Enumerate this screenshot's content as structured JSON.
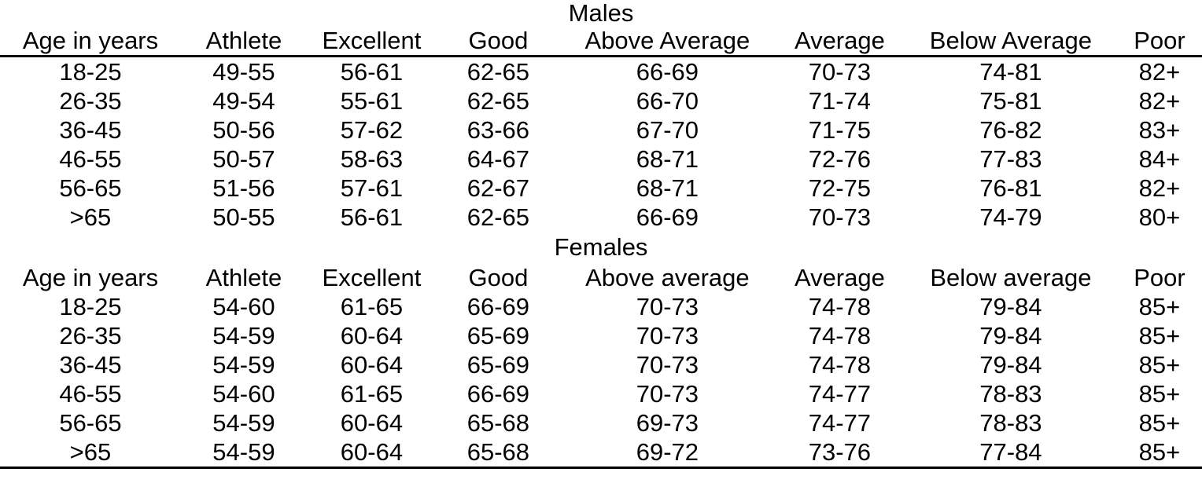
{
  "colors": {
    "background": "#ffffff",
    "text": "#000000",
    "rule": "#000000"
  },
  "tables": [
    {
      "title": "Males",
      "columns": [
        "Age in years",
        "Athlete",
        "Excellent",
        "Good",
        "Above Average",
        "Average",
        "Below Average",
        "Poor"
      ],
      "rows": [
        [
          "18-25",
          "49-55",
          "56-61",
          "62-65",
          "66-69",
          "70-73",
          "74-81",
          "82+"
        ],
        [
          "26-35",
          "49-54",
          "55-61",
          "62-65",
          "66-70",
          "71-74",
          "75-81",
          "82+"
        ],
        [
          "36-45",
          "50-56",
          "57-62",
          "63-66",
          "67-70",
          "71-75",
          "76-82",
          "83+"
        ],
        [
          "46-55",
          "50-57",
          "58-63",
          "64-67",
          "68-71",
          "72-76",
          "77-83",
          "84+"
        ],
        [
          "56-65",
          "51-56",
          "57-61",
          "62-67",
          "68-71",
          "72-75",
          "76-81",
          "82+"
        ],
        [
          ">65",
          "50-55",
          "56-61",
          "62-65",
          "66-69",
          "70-73",
          "74-79",
          "80+"
        ]
      ]
    },
    {
      "title": "Females",
      "columns": [
        "Age in years",
        "Athlete",
        "Excellent",
        "Good",
        "Above average",
        "Average",
        "Below average",
        "Poor"
      ],
      "rows": [
        [
          "18-25",
          "54-60",
          "61-65",
          "66-69",
          "70-73",
          "74-78",
          "79-84",
          "85+"
        ],
        [
          "26-35",
          "54-59",
          "60-64",
          "65-69",
          "70-73",
          "74-78",
          "79-84",
          "85+"
        ],
        [
          "36-45",
          "54-59",
          "60-64",
          "65-69",
          "70-73",
          "74-78",
          "79-84",
          "85+"
        ],
        [
          "46-55",
          "54-60",
          "61-65",
          "66-69",
          "70-73",
          "74-77",
          "78-83",
          "85+"
        ],
        [
          "56-65",
          "54-59",
          "60-64",
          "65-68",
          "69-73",
          "74-77",
          "78-83",
          "85+"
        ],
        [
          ">65",
          "54-59",
          "60-64",
          "65-68",
          "69-72",
          "73-76",
          "77-84",
          "85+"
        ]
      ]
    }
  ]
}
